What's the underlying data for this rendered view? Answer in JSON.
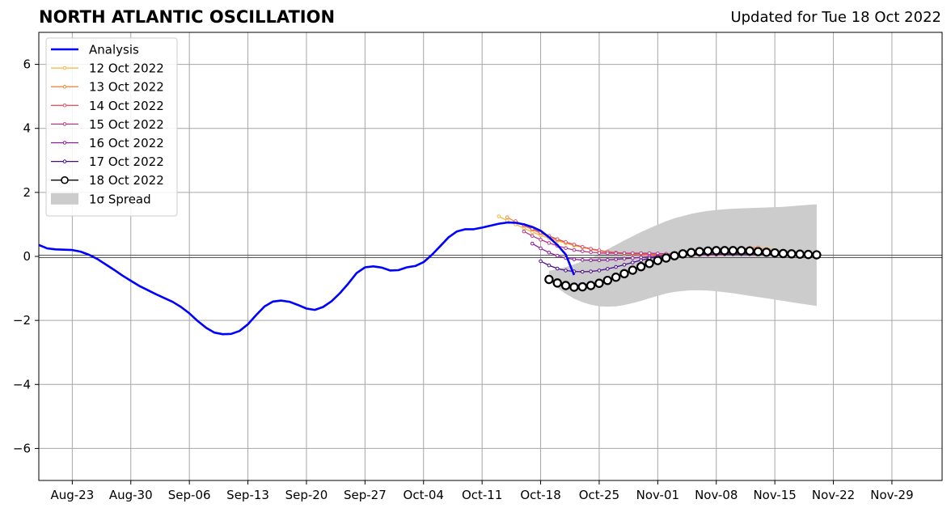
{
  "chart_data": {
    "type": "line",
    "title": "NORTH ATLANTIC OSCILLATION",
    "subtitle": "Updated for Tue 18 Oct 2022",
    "xlabel": "",
    "ylabel": "",
    "xlim": [
      "2022-08-19",
      "2022-12-05"
    ],
    "ylim": [
      -7,
      7
    ],
    "grid": true,
    "legend_position": "top-left",
    "x_ticks": [
      "Aug-23",
      "Aug-30",
      "Sep-06",
      "Sep-13",
      "Sep-20",
      "Sep-27",
      "Oct-04",
      "Oct-11",
      "Oct-18",
      "Oct-25",
      "Nov-01",
      "Nov-08",
      "Nov-15",
      "Nov-22",
      "Nov-29"
    ],
    "x_tick_dates": [
      "2022-08-23",
      "2022-08-30",
      "2022-09-06",
      "2022-09-13",
      "2022-09-20",
      "2022-09-27",
      "2022-10-04",
      "2022-10-11",
      "2022-10-18",
      "2022-10-25",
      "2022-11-01",
      "2022-11-08",
      "2022-11-15",
      "2022-11-22",
      "2022-11-29"
    ],
    "y_ticks": [
      6,
      4,
      2,
      0,
      -2,
      -4,
      -6
    ],
    "y_tick_labels": [
      "6",
      "4",
      "2",
      "0",
      "−2",
      "−4",
      "−6"
    ],
    "analysis": {
      "name": "Analysis",
      "color": "#0000ff",
      "start": "2022-08-19",
      "values": [
        0.36,
        0.25,
        0.22,
        0.21,
        0.2,
        0.15,
        0.05,
        -0.08,
        -0.25,
        -0.42,
        -0.6,
        -0.76,
        -0.92,
        -1.05,
        -1.18,
        -1.3,
        -1.42,
        -1.58,
        -1.78,
        -2.02,
        -2.23,
        -2.38,
        -2.43,
        -2.42,
        -2.33,
        -2.12,
        -1.83,
        -1.56,
        -1.41,
        -1.38,
        -1.42,
        -1.52,
        -1.63,
        -1.67,
        -1.58,
        -1.4,
        -1.15,
        -0.85,
        -0.52,
        -0.34,
        -0.31,
        -0.35,
        -0.44,
        -0.43,
        -0.34,
        -0.3,
        -0.18,
        0.05,
        0.32,
        0.6,
        0.78,
        0.85,
        0.85,
        0.9,
        0.96,
        1.02,
        1.06,
        1.05,
        1.0,
        0.92,
        0.8,
        0.6,
        0.36,
        0.06,
        -0.58
      ]
    },
    "forecasts": [
      {
        "name": "12 Oct 2022",
        "color": "#f5b73b",
        "start": "2022-10-13",
        "values": [
          1.25,
          1.12,
          1.0,
          0.88,
          0.76,
          0.66,
          0.57,
          0.49,
          0.41,
          0.34,
          0.28,
          0.22,
          0.17,
          0.13,
          0.1,
          0.08,
          0.07,
          0.06,
          0.05,
          0.05,
          0.05,
          0.05,
          0.05,
          0.05,
          0.05,
          0.05,
          0.05,
          0.06,
          0.1,
          0.14,
          0.18,
          0.22,
          0.25,
          0.2,
          0.15
        ]
      },
      {
        "name": "13 Oct 2022",
        "color": "#f08a3e",
        "start": "2022-10-14",
        "values": [
          1.22,
          1.08,
          0.96,
          0.84,
          0.72,
          0.62,
          0.52,
          0.44,
          0.36,
          0.29,
          0.23,
          0.18,
          0.14,
          0.11,
          0.09,
          0.07,
          0.05,
          0.04,
          0.03,
          0.03,
          0.03,
          0.03,
          0.04,
          0.05,
          0.06,
          0.09,
          0.13,
          0.18,
          0.22,
          0.27,
          0.28,
          0.2,
          0.14,
          0.1
        ]
      },
      {
        "name": "14 Oct 2022",
        "color": "#e05765",
        "start": "2022-10-15",
        "values": [
          1.1,
          0.98,
          0.86,
          0.75,
          0.64,
          0.54,
          0.45,
          0.37,
          0.3,
          0.24,
          0.19,
          0.15,
          0.12,
          0.1,
          0.09,
          0.08,
          0.07,
          0.06,
          0.05,
          0.04,
          0.04,
          0.04,
          0.05,
          0.06,
          0.08,
          0.1,
          0.12,
          0.14,
          0.16,
          0.17,
          0.17,
          0.16,
          0.14,
          0.12
        ]
      },
      {
        "name": "15 Oct 2022",
        "color": "#b8378a",
        "start": "2022-10-16",
        "values": [
          0.78,
          0.64,
          0.52,
          0.42,
          0.33,
          0.26,
          0.2,
          0.16,
          0.13,
          0.11,
          0.1,
          0.1,
          0.1,
          0.1,
          0.1,
          0.1,
          0.09,
          0.08,
          0.07,
          0.06,
          0.05,
          0.05,
          0.05,
          0.06,
          0.07,
          0.08,
          0.09,
          0.1,
          0.1,
          0.1,
          0.1,
          0.09,
          0.08
        ]
      },
      {
        "name": "16 Oct 2022",
        "color": "#8a1a9b",
        "start": "2022-10-17",
        "values": [
          0.4,
          0.25,
          0.12,
          0.02,
          -0.05,
          -0.09,
          -0.11,
          -0.12,
          -0.12,
          -0.11,
          -0.09,
          -0.07,
          -0.05,
          -0.03,
          -0.01,
          0.01,
          0.02,
          0.03,
          0.04,
          0.05,
          0.05,
          0.06,
          0.06,
          0.07,
          0.07,
          0.08,
          0.08,
          0.09,
          0.09,
          0.09,
          0.09,
          0.08
        ]
      },
      {
        "name": "17 Oct 2022",
        "color": "#4b0a8c",
        "start": "2022-10-18",
        "values": [
          -0.15,
          -0.28,
          -0.38,
          -0.44,
          -0.47,
          -0.48,
          -0.47,
          -0.44,
          -0.39,
          -0.33,
          -0.26,
          -0.19,
          -0.12,
          -0.06,
          -0.01,
          0.02,
          0.04,
          0.05,
          0.06,
          0.07,
          0.07,
          0.07,
          0.07,
          0.07,
          0.07,
          0.07,
          0.07,
          0.06,
          0.06,
          0.06,
          0.05
        ]
      },
      {
        "name": "18 Oct 2022",
        "color": "#000000",
        "start": "2022-10-19",
        "values": [
          -0.72,
          -0.83,
          -0.91,
          -0.96,
          -0.95,
          -0.91,
          -0.84,
          -0.75,
          -0.65,
          -0.54,
          -0.43,
          -0.32,
          -0.22,
          -0.13,
          -0.05,
          0.02,
          0.08,
          0.12,
          0.15,
          0.17,
          0.18,
          0.18,
          0.18,
          0.18,
          0.17,
          0.15,
          0.13,
          0.11,
          0.09,
          0.08,
          0.07,
          0.06,
          0.05
        ]
      }
    ],
    "spread": {
      "name": "1σ Spread",
      "color": "#cccccc",
      "start": "2022-10-19",
      "upper": [
        -0.45,
        -0.4,
        -0.33,
        -0.25,
        -0.15,
        -0.05,
        0.08,
        0.22,
        0.36,
        0.5,
        0.63,
        0.76,
        0.88,
        0.99,
        1.1,
        1.19,
        1.26,
        1.33,
        1.38,
        1.42,
        1.45,
        1.47,
        1.49,
        1.5,
        1.51,
        1.52,
        1.53,
        1.54,
        1.55,
        1.57,
        1.59,
        1.61,
        1.63
      ],
      "lower": [
        -0.75,
        -0.98,
        -1.17,
        -1.32,
        -1.43,
        -1.51,
        -1.56,
        -1.57,
        -1.56,
        -1.52,
        -1.46,
        -1.39,
        -1.31,
        -1.23,
        -1.16,
        -1.11,
        -1.08,
        -1.06,
        -1.06,
        -1.07,
        -1.09,
        -1.12,
        -1.15,
        -1.19,
        -1.23,
        -1.27,
        -1.31,
        -1.35,
        -1.39,
        -1.43,
        -1.47,
        -1.51,
        -1.55
      ]
    },
    "legend_label_spread": "1σ Spread"
  }
}
